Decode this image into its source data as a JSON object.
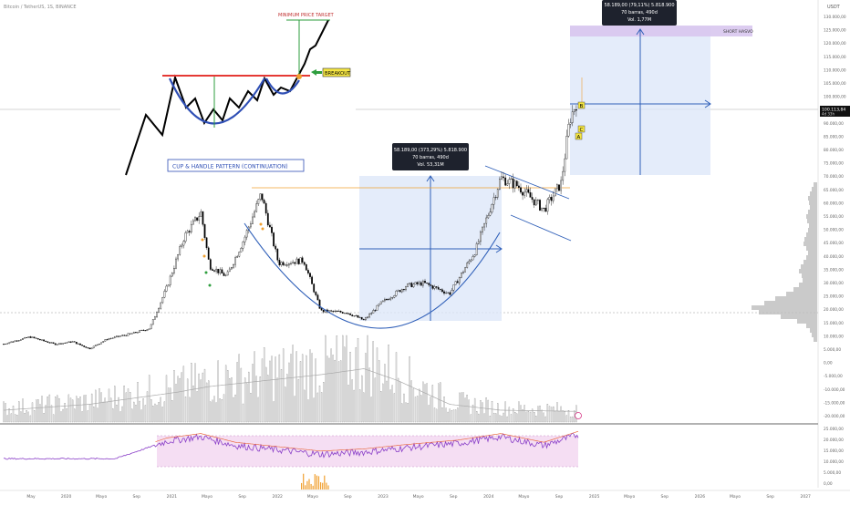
{
  "header": {
    "symbol": "Bitcoin / TetherUS, 1S, BINANCE",
    "currency": "USDT"
  },
  "price_axis": {
    "labels": [
      "130.000,00",
      "125.000,00",
      "120.000,00",
      "115.000,00",
      "110.000,00",
      "105.000,00",
      "100.000,00",
      "95.000,00",
      "90.000,00",
      "85.000,00",
      "80.000,00",
      "75.000,00",
      "70.000,00",
      "65.000,00",
      "60.000,00",
      "55.000,00",
      "50.000,00",
      "45.000,00",
      "40.000,00",
      "35.000,00",
      "30.000,00",
      "25.000,00",
      "20.000,00",
      "15.000,00",
      "10.000,00",
      "5.000,00",
      "0,00",
      "-5.000,00",
      "-10.000,00",
      "-15.000,00",
      "-20.000,00"
    ],
    "current_price": "100.113,84",
    "current_sub": "4d 33h"
  },
  "rsi_axis": {
    "labels": [
      "25.000,00",
      "20.000,00",
      "15.000,00",
      "10.000,00",
      "5.000,00",
      "0,00"
    ]
  },
  "time_axis": {
    "labels": [
      "May",
      "2020",
      "Mayo",
      "Sep",
      "2021",
      "Mayo",
      "Sep",
      "2022",
      "Mayo",
      "Sep",
      "2023",
      "Mayo",
      "Sep",
      "2024",
      "Mayo",
      "Sep",
      "2025",
      "Mayo",
      "Sep",
      "2026",
      "Mayo",
      "Sep",
      "2027"
    ]
  },
  "annotations": {
    "pattern_title": "CUP & HANDLE PATTERN (CONTINUATION)",
    "min_target": "MINIMUM PRICE TARGET",
    "breakout": "BREAKOUT",
    "short_label": "SHORT HASVO",
    "tooltip_left": {
      "line1": "58.189,00 (373,29%) 5.818.900",
      "line2": "70 barras, 490d",
      "line3": "Vol. 53,31M"
    },
    "tooltip_right": {
      "line1": "58.189,00 (79,11%) 5.818.900",
      "line2": "70 barras, 490d",
      "line3": "Vol. 1,77M"
    },
    "letters": [
      "B",
      "C",
      "A"
    ]
  },
  "colors": {
    "candle": "#000000",
    "cup": "#2f5fb8",
    "target_box": "#dbe6f8",
    "short_box": "#d8c7ee",
    "rsi_band": "#f3d6f0",
    "rsi_line": "#8a3fc8",
    "resistance": "#e53935",
    "support_line": "#f0a030",
    "target_line": "#2e9e3e",
    "breakout_box": "#f5e642"
  },
  "chart_data": {
    "type": "candlestick",
    "symbol": "Bitcoin / TetherUS",
    "interval": "1S",
    "exchange": "BINANCE",
    "ylim": [
      -20000,
      130000
    ],
    "price_close_series": [
      [
        "2019-05",
        7600
      ],
      [
        "2019-08",
        10300
      ],
      [
        "2019-11",
        7500
      ],
      [
        "2020-01",
        8500
      ],
      [
        "2020-03",
        5800
      ],
      [
        "2020-05",
        9400
      ],
      [
        "2020-08",
        11600
      ],
      [
        "2020-10",
        13500
      ],
      [
        "2020-12",
        29000
      ],
      [
        "2021-02",
        48000
      ],
      [
        "2021-04",
        57000
      ],
      [
        "2021-05",
        37000
      ],
      [
        "2021-07",
        33000
      ],
      [
        "2021-09",
        47000
      ],
      [
        "2021-11",
        64000
      ],
      [
        "2022-01",
        38000
      ],
      [
        "2022-04",
        39000
      ],
      [
        "2022-06",
        20000
      ],
      [
        "2022-09",
        19500
      ],
      [
        "2022-11",
        16500
      ],
      [
        "2023-01",
        23000
      ],
      [
        "2023-04",
        29500
      ],
      [
        "2023-06",
        30500
      ],
      [
        "2023-09",
        26500
      ],
      [
        "2023-12",
        42500
      ],
      [
        "2024-03",
        70000
      ],
      [
        "2024-05",
        67000
      ],
      [
        "2024-08",
        58000
      ],
      [
        "2024-10",
        68000
      ],
      [
        "2024-11",
        92000
      ],
      [
        "2024-12",
        100113
      ]
    ],
    "volume_series": [
      [
        "2019-05",
        2
      ],
      [
        "2020-03",
        3
      ],
      [
        "2021-01",
        5
      ],
      [
        "2021-05",
        6
      ],
      [
        "2022-06",
        8
      ],
      [
        "2022-11",
        9
      ],
      [
        "2023-03",
        7
      ],
      [
        "2023-09",
        3
      ],
      [
        "2024-03",
        2
      ],
      [
        "2024-12",
        1.8
      ]
    ],
    "rsi_series": [
      [
        "2019-05",
        12
      ],
      [
        "2020-06",
        12
      ],
      [
        "2020-12",
        20
      ],
      [
        "2021-04",
        22
      ],
      [
        "2021-08",
        18
      ],
      [
        "2022-01",
        16
      ],
      [
        "2022-06",
        14
      ],
      [
        "2022-11",
        15
      ],
      [
        "2023-04",
        17
      ],
      [
        "2023-10",
        19
      ],
      [
        "2024-03",
        22
      ],
      [
        "2024-08",
        18
      ],
      [
        "2024-12",
        23
      ]
    ],
    "measured_moves": [
      {
        "from": 15500,
        "to": 73700,
        "change": "58.189,00 (373,29%)",
        "bars": 70,
        "days": 490
      },
      {
        "from": 73700,
        "to": 131900,
        "change": "58.189,00 (79,11%)",
        "bars": 70,
        "days": 490
      }
    ],
    "resistance_level": 69000,
    "current_price": 100113.84
  }
}
